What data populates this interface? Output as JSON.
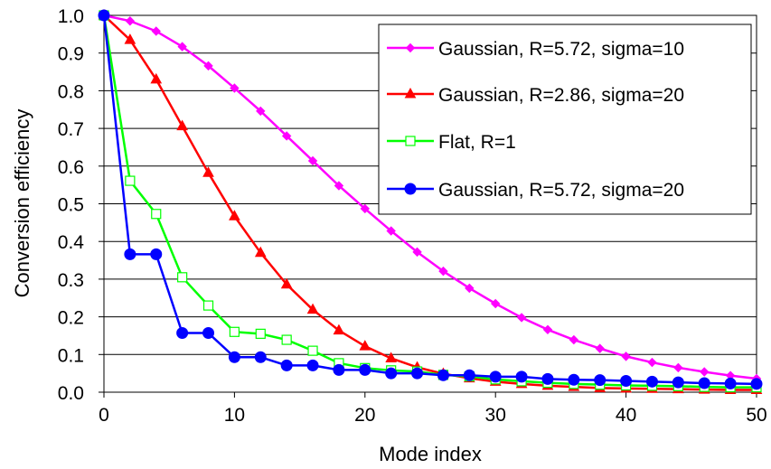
{
  "chart_data": {
    "type": "line",
    "xlabel": "Mode index",
    "ylabel": "Conversion efficiency",
    "xlim": [
      0,
      50
    ],
    "ylim": [
      0,
      1
    ],
    "x_ticks": [
      "0",
      "10",
      "20",
      "30",
      "40",
      "50"
    ],
    "y_ticks": [
      "0.0",
      "0.1",
      "0.2",
      "0.3",
      "0.4",
      "0.5",
      "0.6",
      "0.7",
      "0.8",
      "0.9",
      "1.0"
    ],
    "grid": "horizontal",
    "legend_position": "top-right",
    "x": [
      0,
      2,
      4,
      6,
      8,
      10,
      12,
      14,
      16,
      18,
      20,
      22,
      24,
      26,
      28,
      30,
      32,
      34,
      36,
      38,
      40,
      42,
      44,
      46,
      48,
      50
    ],
    "series": [
      {
        "name": "Gaussian, R=5.72, sigma=10",
        "color": "#ff00ff",
        "marker": "diamond",
        "values": [
          1.0,
          0.985,
          0.958,
          0.917,
          0.866,
          0.807,
          0.746,
          0.68,
          0.614,
          0.548,
          0.487,
          0.428,
          0.372,
          0.321,
          0.276,
          0.235,
          0.198,
          0.166,
          0.139,
          0.116,
          0.095,
          0.079,
          0.065,
          0.054,
          0.044,
          0.036
        ]
      },
      {
        "name": "Gaussian, R=2.86, sigma=20",
        "color": "#ff0000",
        "marker": "triangle",
        "values": [
          1.0,
          0.935,
          0.83,
          0.706,
          0.582,
          0.467,
          0.37,
          0.286,
          0.219,
          0.164,
          0.122,
          0.09,
          0.066,
          0.049,
          0.037,
          0.028,
          0.022,
          0.017,
          0.014,
          0.011,
          0.01,
          0.009,
          0.008,
          0.007,
          0.006,
          0.006
        ]
      },
      {
        "name": "Flat, R=1",
        "color": "#00ff00",
        "marker": "square-open",
        "values": [
          1.0,
          0.561,
          0.473,
          0.305,
          0.23,
          0.16,
          0.155,
          0.139,
          0.11,
          0.077,
          0.064,
          0.058,
          0.055,
          0.046,
          0.042,
          0.034,
          0.029,
          0.025,
          0.022,
          0.02,
          0.018,
          0.017,
          0.016,
          0.014,
          0.013,
          0.013
        ]
      },
      {
        "name": "Gaussian, R=5.72, sigma=20",
        "color": "#0000ff",
        "marker": "circle",
        "values": [
          1.0,
          0.366,
          0.366,
          0.157,
          0.157,
          0.093,
          0.093,
          0.071,
          0.071,
          0.059,
          0.059,
          0.05,
          0.05,
          0.045,
          0.045,
          0.041,
          0.041,
          0.035,
          0.033,
          0.032,
          0.03,
          0.028,
          0.026,
          0.024,
          0.023,
          0.022
        ]
      }
    ]
  }
}
